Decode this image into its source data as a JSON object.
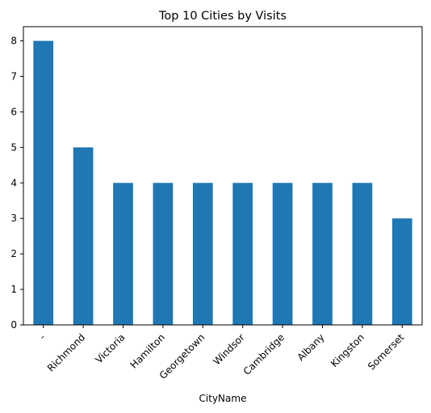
{
  "chart_data": {
    "type": "bar",
    "title": "Top 10 Cities by Visits",
    "xlabel": "CityName",
    "ylabel": "",
    "categories": [
      "-",
      "Richmond",
      "Victoria",
      "Hamilton",
      "Georgetown",
      "Windsor",
      "Cambridge",
      "Albany",
      "Kingston",
      "Somerset"
    ],
    "values": [
      8,
      5,
      4,
      4,
      4,
      4,
      4,
      4,
      4,
      3
    ],
    "ylim": [
      0,
      8.4
    ],
    "yticks": [
      0,
      1,
      2,
      3,
      4,
      5,
      6,
      7,
      8
    ],
    "bar_color": "#1f77b4",
    "grid": false,
    "legend": "none"
  }
}
